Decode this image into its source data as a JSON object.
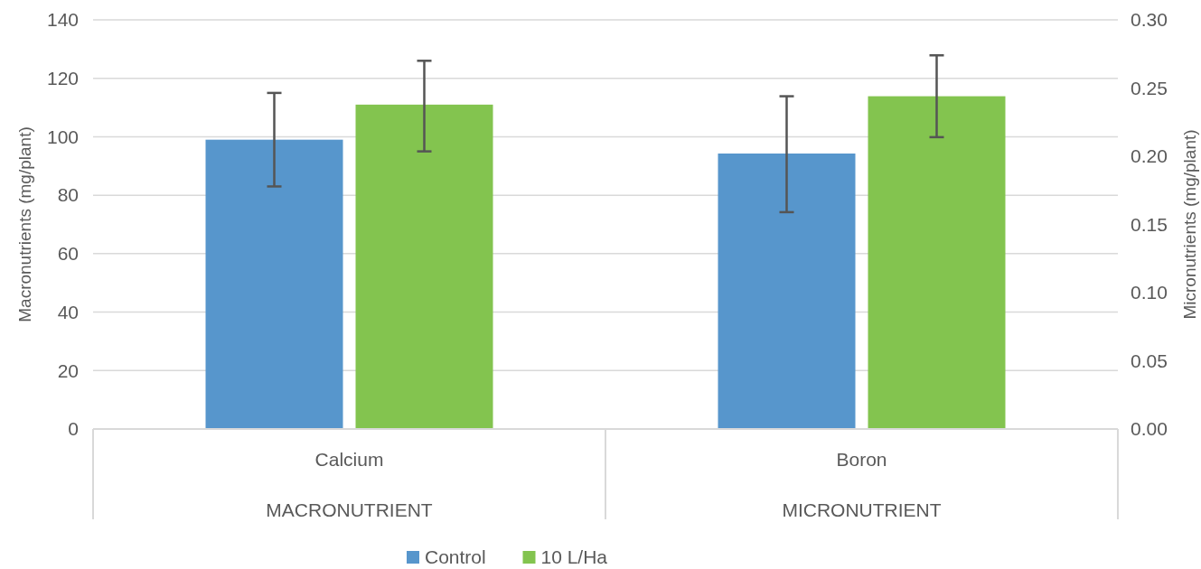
{
  "chart_data": {
    "type": "bar",
    "categories": [
      "Calcium",
      "Boron"
    ],
    "annotations": [
      "MACRONUTRIENT",
      "MICRONUTRIENT"
    ],
    "ylabel": "Macronutrients (mg/plant)",
    "y2label": "Micronutrients (mg/plant)",
    "series": [
      {
        "name": "Control",
        "color": "#5796cc",
        "values": [
          99,
          null
        ],
        "errors": [
          [
            83,
            115
          ],
          null
        ]
      },
      {
        "name": "10 L/Ha",
        "color": "#83c44f",
        "values": [
          111,
          null
        ],
        "errors": [
          [
            95,
            126
          ],
          null
        ]
      },
      {
        "color": "#5796cc",
        "axis": "y2",
        "values": [
          null,
          0.202
        ],
        "errors": [
          null,
          [
            0.159,
            0.244
          ]
        ]
      },
      {
        "color": "#83c44f",
        "axis": "y2",
        "values": [
          null,
          0.244
        ],
        "errors": [
          null,
          [
            0.214,
            0.274
          ]
        ]
      }
    ],
    "ylim": [
      0,
      140
    ],
    "yticks": [
      0,
      20,
      40,
      60,
      80,
      100,
      120,
      140
    ],
    "y2lim": [
      0,
      0.3
    ],
    "y2ticks": [
      {
        "value": 0,
        "label": "0.00"
      },
      {
        "value": 0.05,
        "label": "0.05"
      },
      {
        "value": 0.1,
        "label": "0.10"
      },
      {
        "value": 0.15,
        "label": "0.15"
      },
      {
        "value": 0.2,
        "label": "0.20"
      },
      {
        "value": 0.25,
        "label": "0.25"
      },
      {
        "value": 0.3,
        "label": "0.30"
      }
    ],
    "grid": "y",
    "legend": "bottom"
  }
}
